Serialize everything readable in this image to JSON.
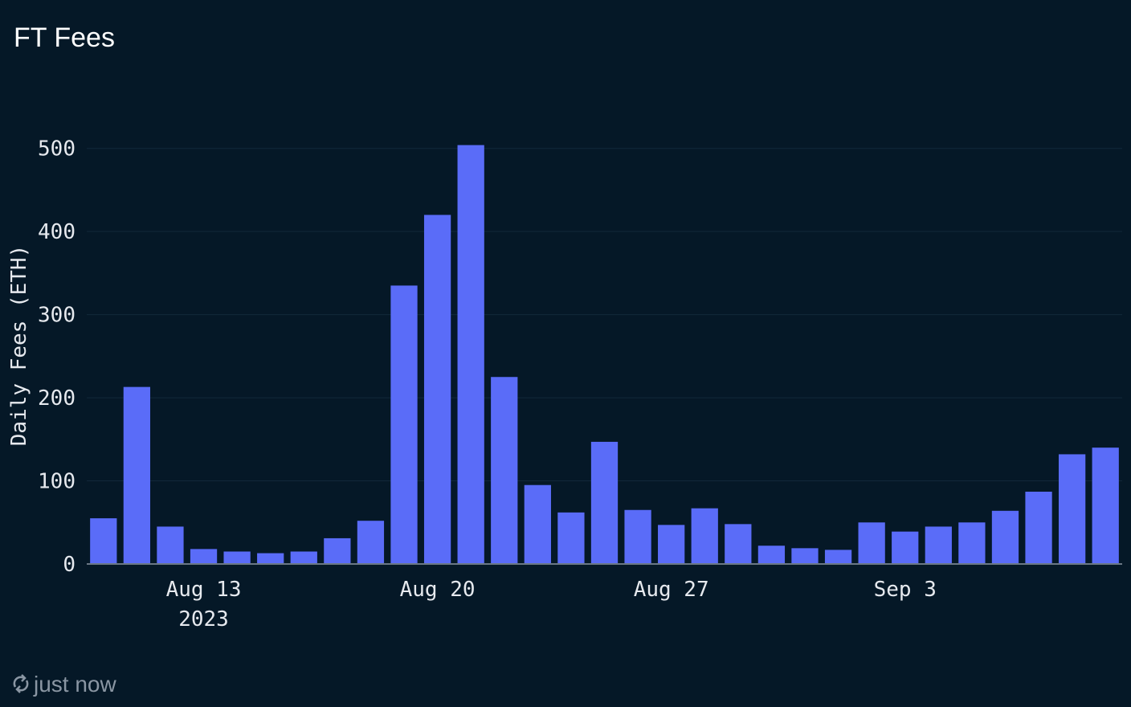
{
  "chart_data": {
    "type": "bar",
    "title": "FT Fees",
    "y_label": "Daily Fees (ETH)",
    "footer": "just now",
    "categories": [
      "2023-08-10",
      "2023-08-11",
      "2023-08-12",
      "2023-08-13",
      "2023-08-14",
      "2023-08-15",
      "2023-08-16",
      "2023-08-17",
      "2023-08-18",
      "2023-08-19",
      "2023-08-20",
      "2023-08-21",
      "2023-08-22",
      "2023-08-23",
      "2023-08-24",
      "2023-08-25",
      "2023-08-26",
      "2023-08-27",
      "2023-08-28",
      "2023-08-29",
      "2023-08-30",
      "2023-08-31",
      "2023-09-01",
      "2023-09-02",
      "2023-09-03",
      "2023-09-04",
      "2023-09-05",
      "2023-09-06",
      "2023-09-07",
      "2023-09-08",
      "2023-09-09"
    ],
    "values": [
      55,
      213,
      45,
      18,
      15,
      13,
      15,
      31,
      52,
      335,
      420,
      504,
      225,
      95,
      62,
      147,
      65,
      47,
      67,
      48,
      22,
      19,
      17,
      50,
      39,
      45,
      50,
      64,
      87,
      132,
      140
    ],
    "color": "#5a6cf8",
    "ylim": [
      0,
      550
    ],
    "yticks": [
      0,
      100,
      200,
      300,
      400,
      500
    ],
    "grid": true,
    "xticks": [
      {
        "value": "2023-08-13",
        "label": [
          "Aug 13",
          "2023"
        ]
      },
      {
        "value": "2023-08-20",
        "label": [
          "Aug 20"
        ]
      },
      {
        "value": "2023-08-27",
        "label": [
          "Aug 27"
        ]
      },
      {
        "value": "2023-09-03",
        "label": [
          "Sep 3"
        ]
      }
    ]
  }
}
